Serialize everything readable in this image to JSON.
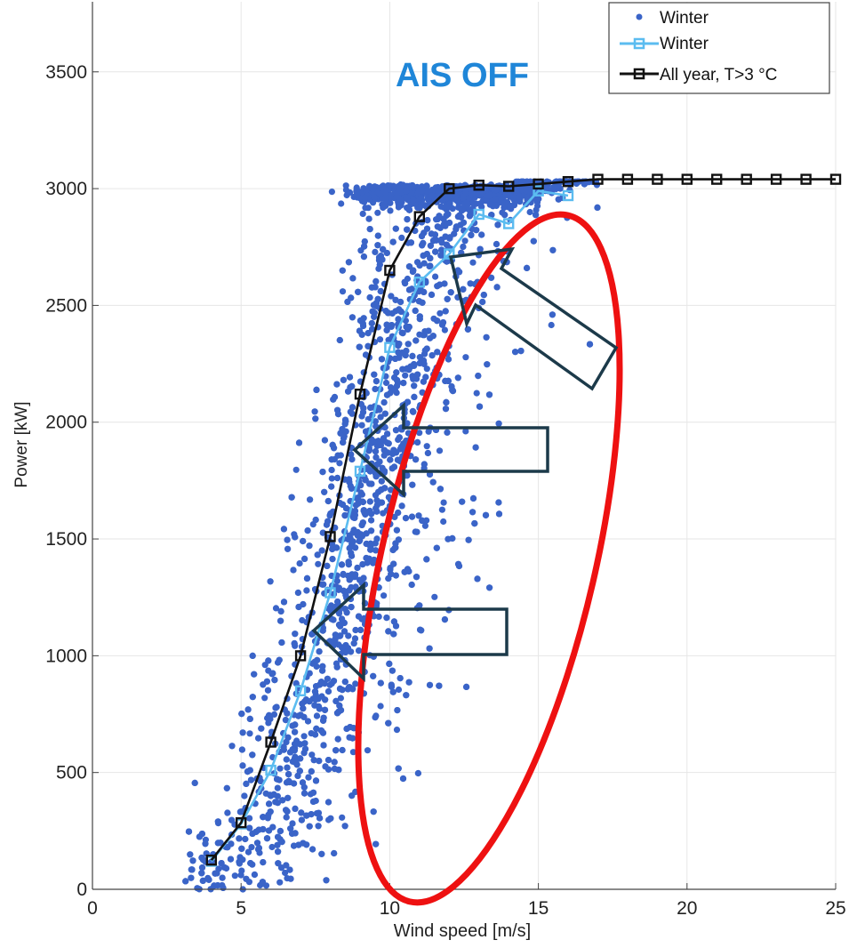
{
  "chart_data": {
    "type": "scatter",
    "title": "AIS OFF",
    "xlabel": "Wind speed [m/s]",
    "ylabel": "Power [kW]",
    "xlim": [
      0,
      25
    ],
    "ylim": [
      0,
      3800
    ],
    "xticks": [
      0,
      5,
      10,
      15,
      20,
      25
    ],
    "yticks": [
      0,
      500,
      1000,
      1500,
      2000,
      2500,
      3000,
      3500
    ],
    "grid": true,
    "legend_position": "top-right",
    "series": [
      {
        "name": "Winter",
        "kind": "scatter",
        "color": "#3a64c8",
        "description": "measured 10-min power vs wind speed, dense cloud from ~3 to ~17 m/s, spread to the right (icing losses)"
      },
      {
        "name": "Winter",
        "kind": "line-marker",
        "color": "#5bbcf0",
        "x": [
          4,
          5,
          6,
          7,
          8,
          9,
          10,
          11,
          12,
          13,
          14,
          15,
          16
        ],
        "y": [
          120,
          280,
          510,
          850,
          1270,
          1790,
          2320,
          2600,
          2720,
          2890,
          2850,
          2990,
          2970
        ]
      },
      {
        "name": "All year, T>3 °C",
        "kind": "line-marker",
        "color": "#111111",
        "x": [
          4,
          5,
          6,
          7,
          8,
          9,
          10,
          11,
          12,
          13,
          14,
          15,
          16,
          17,
          18,
          19,
          20,
          21,
          22,
          23,
          24,
          25
        ],
        "y": [
          125,
          285,
          630,
          1000,
          1510,
          2120,
          2650,
          2880,
          3000,
          3015,
          3010,
          3020,
          3030,
          3040,
          3040,
          3040,
          3040,
          3040,
          3040,
          3040,
          3040,
          3040
        ]
      }
    ],
    "annotations": [
      {
        "type": "ellipse",
        "color": "#ee1111",
        "description": "highlights scattered low-power points right of the curve"
      },
      {
        "type": "arrow",
        "color": "#1c3a4a",
        "direction": "up-left"
      },
      {
        "type": "arrow",
        "color": "#1c3a4a",
        "direction": "left"
      },
      {
        "type": "arrow",
        "color": "#1c3a4a",
        "direction": "left"
      }
    ]
  }
}
